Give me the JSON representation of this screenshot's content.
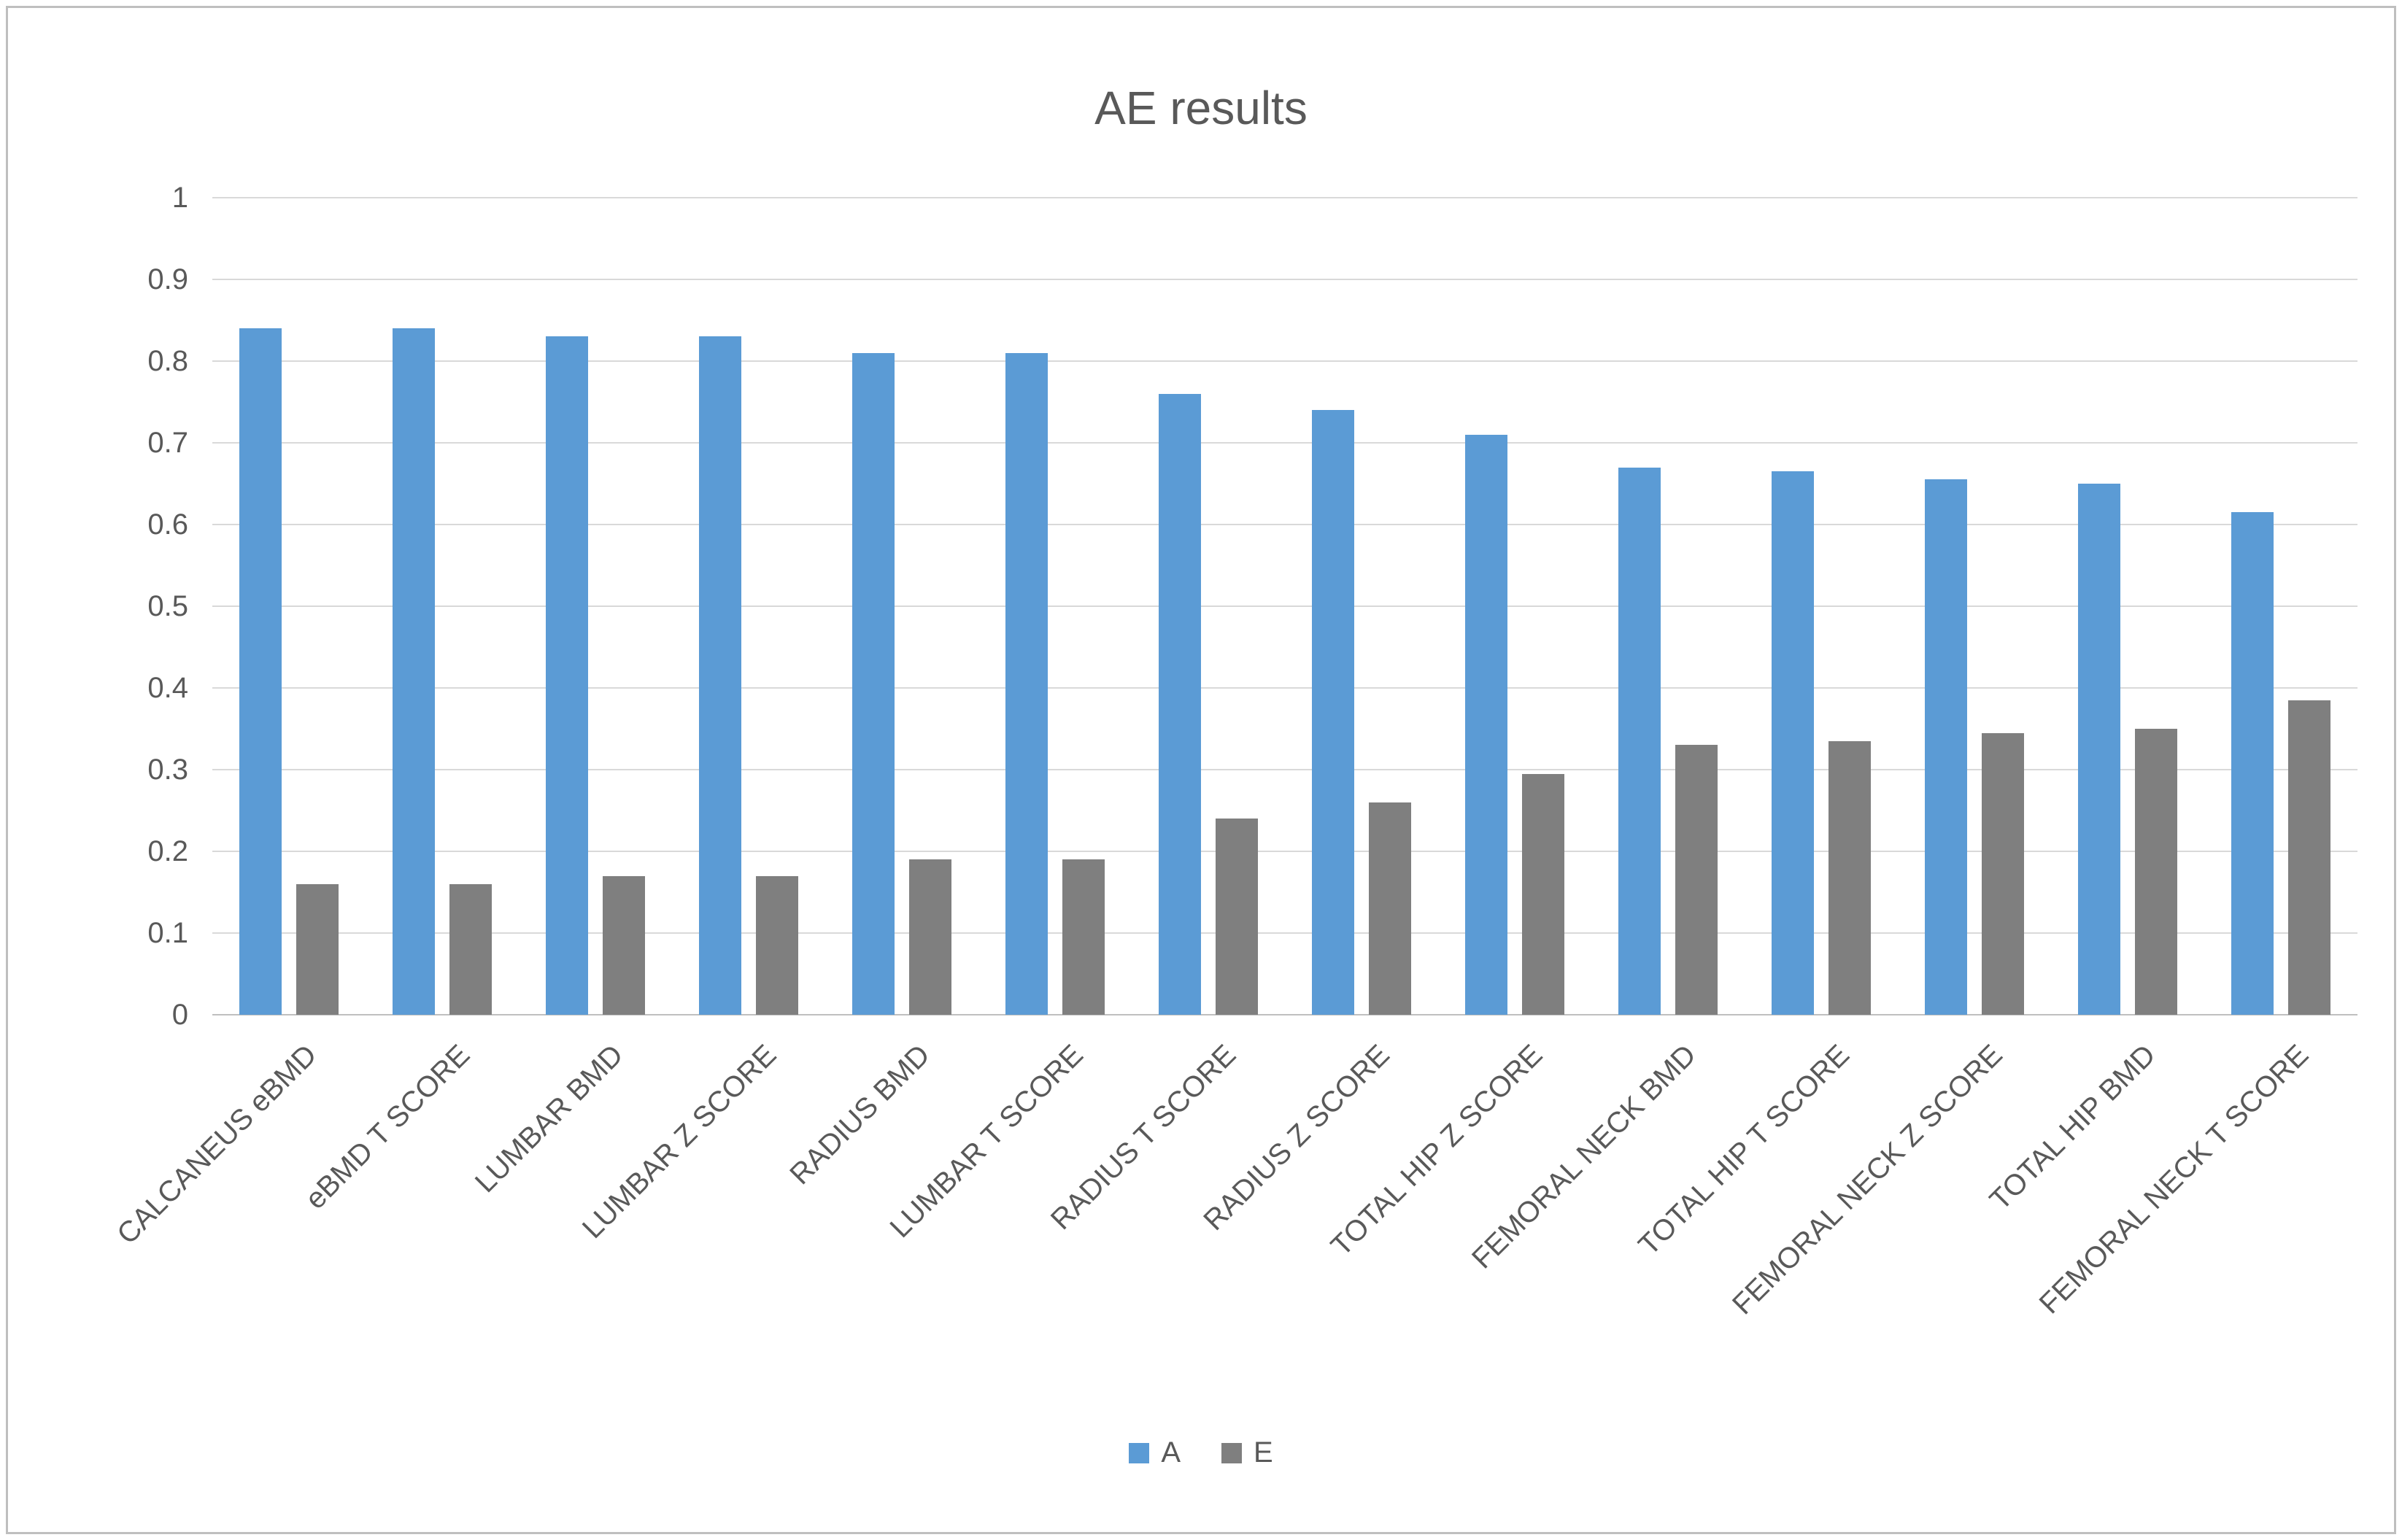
{
  "chart_data": {
    "type": "bar",
    "title": "AE results",
    "categories": [
      "CALCANEUS eBMD",
      "eBMD T SCORE",
      "LUMBAR BMD",
      "LUMBAR Z SCORE",
      "RADIUS BMD",
      "LUMBAR T SCORE",
      "RADIUS T SCORE",
      "RADIUS Z SCORE",
      "TOTAL HIP Z SCORE",
      "FEMORAL NECK BMD",
      "TOTAL HIP T SCORE",
      "FEMORAL NECK Z SCORE",
      "TOTAL HIP BMD",
      "FEMORAL NECK T SCORE"
    ],
    "series": [
      {
        "name": "A",
        "color": "#5B9BD5",
        "values": [
          0.84,
          0.84,
          0.83,
          0.83,
          0.81,
          0.81,
          0.76,
          0.74,
          0.71,
          0.67,
          0.665,
          0.655,
          0.65,
          0.615
        ]
      },
      {
        "name": "E",
        "color": "#7F7F7F",
        "values": [
          0.16,
          0.16,
          0.17,
          0.17,
          0.19,
          0.19,
          0.24,
          0.26,
          0.295,
          0.33,
          0.335,
          0.345,
          0.35,
          0.385
        ]
      }
    ],
    "xlabel": "",
    "ylabel": "",
    "ylim": [
      0,
      1
    ],
    "yticks": [
      0,
      0.1,
      0.2,
      0.3,
      0.4,
      0.5,
      0.6,
      0.7,
      0.8,
      0.9,
      1
    ],
    "ytick_labels": [
      "0",
      "0.1",
      "0.2",
      "0.3",
      "0.4",
      "0.5",
      "0.6",
      "0.7",
      "0.8",
      "0.9",
      "1"
    ],
    "grid": true,
    "legend_position": "bottom"
  },
  "colors": {
    "title_text": "#595959",
    "axis_text": "#595959",
    "gridline": "#D9D9D9",
    "axis_line": "#BFBFBF",
    "frame_border": "#BFBFBF",
    "background": "#FFFFFF"
  }
}
